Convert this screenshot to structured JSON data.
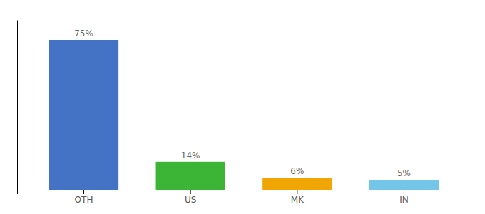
{
  "chart_data": {
    "type": "bar",
    "categories": [
      "OTH",
      "US",
      "MK",
      "IN"
    ],
    "values": [
      75,
      14,
      6,
      5
    ],
    "value_labels": [
      "75%",
      "14%",
      "6%",
      "5%"
    ],
    "colors": [
      "#4472c4",
      "#3cb536",
      "#f0a500",
      "#74c6e8"
    ],
    "ylim": [
      0,
      85
    ],
    "data_labels": true,
    "tick_labels": "x"
  }
}
